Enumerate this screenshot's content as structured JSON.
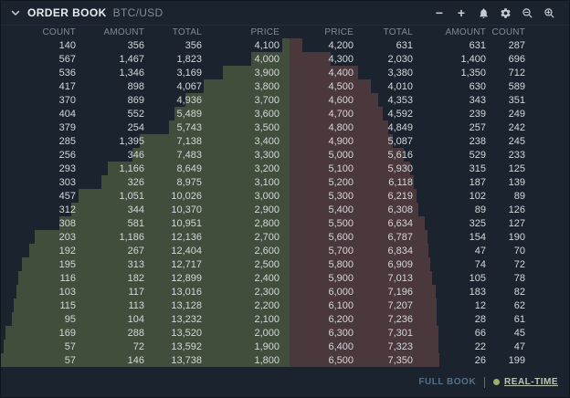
{
  "header": {
    "title": "ORDER BOOK",
    "pair": "BTC/USD"
  },
  "toolbar": {
    "minus_glyph": "−",
    "plus_glyph": "+",
    "icons": [
      "collapse-chevron-icon",
      "minimize-icon",
      "add-icon",
      "alerts-bell-icon",
      "settings-gear-icon",
      "zoom-out-icon",
      "zoom-in-icon"
    ]
  },
  "columns": {
    "bids": [
      "COUNT",
      "AMOUNT",
      "TOTAL",
      "PRICE"
    ],
    "asks": [
      "PRICE",
      "TOTAL",
      "AMOUNT",
      "COUNT"
    ]
  },
  "bids": [
    {
      "count": "140",
      "amount": "356",
      "total": "356",
      "price": "4,100"
    },
    {
      "count": "567",
      "amount": "1,467",
      "total": "1,823",
      "price": "4,000"
    },
    {
      "count": "536",
      "amount": "1,346",
      "total": "3,169",
      "price": "3,900"
    },
    {
      "count": "417",
      "amount": "898",
      "total": "4,067",
      "price": "3,800"
    },
    {
      "count": "370",
      "amount": "869",
      "total": "4,936",
      "price": "3,700"
    },
    {
      "count": "404",
      "amount": "552",
      "total": "5,489",
      "price": "3,600"
    },
    {
      "count": "379",
      "amount": "254",
      "total": "5,743",
      "price": "3,500"
    },
    {
      "count": "285",
      "amount": "1,395",
      "total": "7,138",
      "price": "3,400"
    },
    {
      "count": "256",
      "amount": "346",
      "total": "7,483",
      "price": "3,300"
    },
    {
      "count": "293",
      "amount": "1,166",
      "total": "8,649",
      "price": "3,200"
    },
    {
      "count": "303",
      "amount": "326",
      "total": "8,975",
      "price": "3,100"
    },
    {
      "count": "457",
      "amount": "1,051",
      "total": "10,026",
      "price": "3,000"
    },
    {
      "count": "312",
      "amount": "344",
      "total": "10,370",
      "price": "2,900"
    },
    {
      "count": "308",
      "amount": "581",
      "total": "10,951",
      "price": "2,800"
    },
    {
      "count": "203",
      "amount": "1,186",
      "total": "12,136",
      "price": "2,700"
    },
    {
      "count": "192",
      "amount": "267",
      "total": "12,404",
      "price": "2,600"
    },
    {
      "count": "195",
      "amount": "313",
      "total": "12,717",
      "price": "2,500"
    },
    {
      "count": "116",
      "amount": "182",
      "total": "12,899",
      "price": "2,400"
    },
    {
      "count": "103",
      "amount": "117",
      "total": "13,016",
      "price": "2,300"
    },
    {
      "count": "115",
      "amount": "113",
      "total": "13,128",
      "price": "2,200"
    },
    {
      "count": "95",
      "amount": "104",
      "total": "13,232",
      "price": "2,100"
    },
    {
      "count": "169",
      "amount": "288",
      "total": "13,520",
      "price": "2,000"
    },
    {
      "count": "57",
      "amount": "72",
      "total": "13,592",
      "price": "1,900"
    },
    {
      "count": "57",
      "amount": "146",
      "total": "13,738",
      "price": "1,800"
    }
  ],
  "asks": [
    {
      "price": "4,200",
      "total": "631",
      "amount": "631",
      "count": "287"
    },
    {
      "price": "4,300",
      "total": "2,030",
      "amount": "1,400",
      "count": "696"
    },
    {
      "price": "4,400",
      "total": "3,380",
      "amount": "1,350",
      "count": "712"
    },
    {
      "price": "4,500",
      "total": "4,010",
      "amount": "630",
      "count": "589"
    },
    {
      "price": "4,600",
      "total": "4,353",
      "amount": "343",
      "count": "351"
    },
    {
      "price": "4,700",
      "total": "4,592",
      "amount": "239",
      "count": "249"
    },
    {
      "price": "4,800",
      "total": "4,849",
      "amount": "257",
      "count": "242"
    },
    {
      "price": "4,900",
      "total": "5,087",
      "amount": "238",
      "count": "245"
    },
    {
      "price": "5,000",
      "total": "5,616",
      "amount": "529",
      "count": "233"
    },
    {
      "price": "5,100",
      "total": "5,930",
      "amount": "315",
      "count": "125"
    },
    {
      "price": "5,200",
      "total": "6,118",
      "amount": "187",
      "count": "139"
    },
    {
      "price": "5,300",
      "total": "6,219",
      "amount": "102",
      "count": "89"
    },
    {
      "price": "5,400",
      "total": "6,308",
      "amount": "89",
      "count": "126"
    },
    {
      "price": "5,500",
      "total": "6,634",
      "amount": "325",
      "count": "127"
    },
    {
      "price": "5,600",
      "total": "6,787",
      "amount": "154",
      "count": "190"
    },
    {
      "price": "5,700",
      "total": "6,834",
      "amount": "47",
      "count": "70"
    },
    {
      "price": "5,800",
      "total": "6,909",
      "amount": "74",
      "count": "72"
    },
    {
      "price": "5,900",
      "total": "7,013",
      "amount": "105",
      "count": "78"
    },
    {
      "price": "6,000",
      "total": "7,196",
      "amount": "183",
      "count": "82"
    },
    {
      "price": "6,100",
      "total": "7,207",
      "amount": "12",
      "count": "62"
    },
    {
      "price": "6,200",
      "total": "7,236",
      "amount": "28",
      "count": "61"
    },
    {
      "price": "6,300",
      "total": "7,301",
      "amount": "66",
      "count": "45"
    },
    {
      "price": "6,400",
      "total": "7,323",
      "amount": "22",
      "count": "47"
    },
    {
      "price": "6,500",
      "total": "7,350",
      "amount": "26",
      "count": "199"
    }
  ],
  "footer": {
    "full_book": "FULL BOOK",
    "real_time": "REAL-TIME"
  },
  "colors": {
    "background": "#1b242e",
    "bid_fill": "#414e3b",
    "ask_fill": "#4b383d",
    "realtime_dot": "#9cb163",
    "text": "#d4d7da",
    "muted_text": "#828b94"
  }
}
